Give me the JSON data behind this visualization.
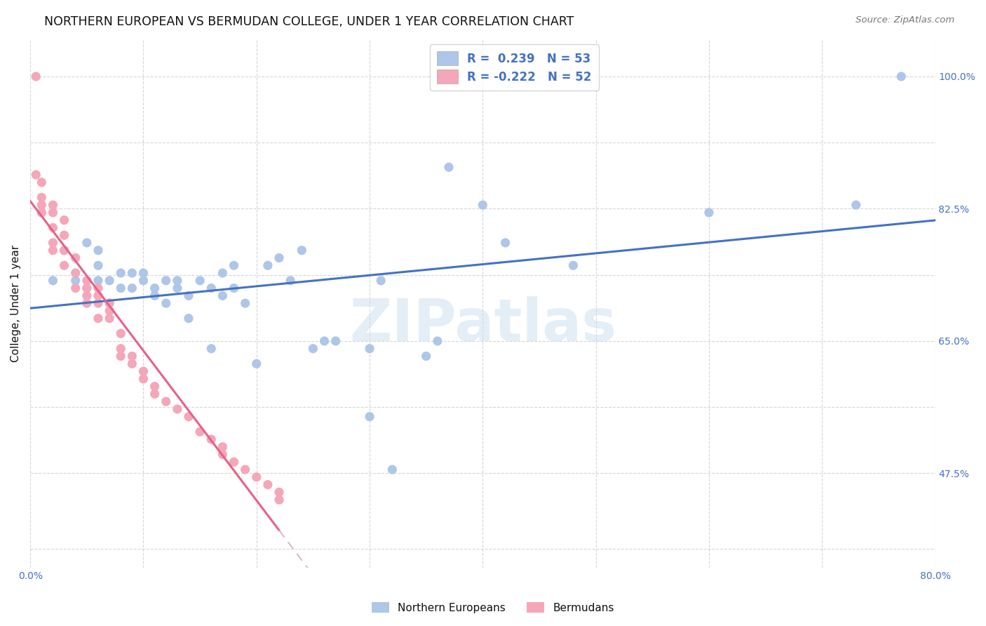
{
  "title": "NORTHERN EUROPEAN VS BERMUDAN COLLEGE, UNDER 1 YEAR CORRELATION CHART",
  "source": "Source: ZipAtlas.com",
  "ylabel_label": "College, Under 1 year",
  "xlim": [
    0.0,
    0.8
  ],
  "ylim": [
    0.35,
    1.05
  ],
  "x_tick_positions": [
    0.0,
    0.1,
    0.2,
    0.3,
    0.4,
    0.5,
    0.6,
    0.7,
    0.8
  ],
  "x_tick_labels": [
    "0.0%",
    "",
    "",
    "",
    "",
    "",
    "",
    "",
    "80.0%"
  ],
  "y_ticks_pos": [
    0.375,
    0.475,
    0.5625,
    0.65,
    0.7375,
    0.825,
    0.9125,
    1.0
  ],
  "y_tick_labels": [
    "",
    "47.5%",
    "",
    "65.0%",
    "",
    "82.5%",
    "",
    "100.0%"
  ],
  "blue_color": "#aec6e8",
  "pink_color": "#f4a7b9",
  "blue_line_color": "#4472c4",
  "pink_line_color": "#e8608a",
  "pink_dash_color": "#ddbbcc",
  "watermark_text": "ZIPatlas",
  "ne_x": [
    0.02,
    0.03,
    0.04,
    0.05,
    0.05,
    0.06,
    0.06,
    0.06,
    0.07,
    0.07,
    0.08,
    0.08,
    0.09,
    0.09,
    0.1,
    0.1,
    0.11,
    0.11,
    0.12,
    0.12,
    0.13,
    0.13,
    0.14,
    0.14,
    0.15,
    0.16,
    0.16,
    0.17,
    0.17,
    0.18,
    0.18,
    0.19,
    0.2,
    0.21,
    0.22,
    0.23,
    0.24,
    0.25,
    0.26,
    0.27,
    0.3,
    0.3,
    0.31,
    0.32,
    0.35,
    0.36,
    0.37,
    0.4,
    0.42,
    0.48,
    0.6,
    0.73,
    0.77
  ],
  "ne_y": [
    0.73,
    0.77,
    0.73,
    0.72,
    0.78,
    0.73,
    0.75,
    0.77,
    0.7,
    0.73,
    0.72,
    0.74,
    0.72,
    0.74,
    0.73,
    0.74,
    0.71,
    0.72,
    0.7,
    0.73,
    0.72,
    0.73,
    0.68,
    0.71,
    0.73,
    0.64,
    0.72,
    0.71,
    0.74,
    0.72,
    0.75,
    0.7,
    0.62,
    0.75,
    0.76,
    0.73,
    0.77,
    0.64,
    0.65,
    0.65,
    0.55,
    0.64,
    0.73,
    0.48,
    0.63,
    0.65,
    0.88,
    0.83,
    0.78,
    0.75,
    0.82,
    0.83,
    1.0
  ],
  "bm_x": [
    0.005,
    0.005,
    0.01,
    0.01,
    0.01,
    0.01,
    0.01,
    0.02,
    0.02,
    0.02,
    0.02,
    0.02,
    0.03,
    0.03,
    0.03,
    0.03,
    0.04,
    0.04,
    0.04,
    0.05,
    0.05,
    0.05,
    0.05,
    0.06,
    0.06,
    0.06,
    0.06,
    0.07,
    0.07,
    0.07,
    0.08,
    0.08,
    0.08,
    0.09,
    0.09,
    0.1,
    0.1,
    0.11,
    0.11,
    0.12,
    0.13,
    0.14,
    0.15,
    0.16,
    0.17,
    0.17,
    0.18,
    0.19,
    0.2,
    0.21,
    0.22,
    0.22
  ],
  "bm_y": [
    1.0,
    0.87,
    0.86,
    0.84,
    0.83,
    0.82,
    0.82,
    0.83,
    0.82,
    0.8,
    0.78,
    0.77,
    0.81,
    0.79,
    0.77,
    0.75,
    0.76,
    0.74,
    0.72,
    0.73,
    0.72,
    0.71,
    0.7,
    0.72,
    0.71,
    0.7,
    0.68,
    0.7,
    0.69,
    0.68,
    0.66,
    0.64,
    0.63,
    0.63,
    0.62,
    0.61,
    0.6,
    0.59,
    0.58,
    0.57,
    0.56,
    0.55,
    0.53,
    0.52,
    0.51,
    0.5,
    0.49,
    0.48,
    0.47,
    0.46,
    0.45,
    0.44
  ]
}
